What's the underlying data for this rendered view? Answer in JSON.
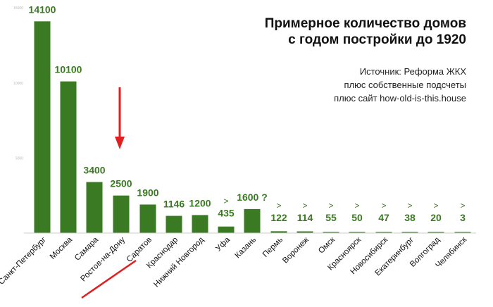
{
  "chart_data": {
    "type": "bar",
    "title_lines": [
      "Примерное количество домов",
      "с годом постройки до 1920"
    ],
    "source_lines": [
      "Источник: Реформа ЖКХ",
      "плюс собственные подсчеты",
      "плюс сайт how-old-is-this.house"
    ],
    "categories": [
      "Санкт-Петербург",
      "Москва",
      "Самара",
      "Ростов-на-Дону",
      "Саратов",
      "Краснодар",
      "Нижний Новгород",
      "Уфа",
      "Казань",
      "Пермь",
      "Воронеж",
      "Омск",
      "Красноярск",
      "Новосибирск",
      "Екатеринбург",
      "Волгоград",
      "Челябинск"
    ],
    "values": [
      14100,
      10100,
      3400,
      2500,
      1900,
      1146,
      1200,
      435,
      1600,
      122,
      114,
      55,
      50,
      47,
      38,
      20,
      3
    ],
    "data_labels": [
      "14100",
      "10100",
      "3400",
      "2500",
      "1900",
      "1146",
      "1200",
      "435",
      "1600 ?",
      "122",
      "114",
      "55",
      "50",
      "47",
      "38",
      "20",
      "3"
    ],
    "label_prefix": [
      "",
      "",
      "",
      "",
      "",
      "",
      "",
      ">",
      "",
      ">",
      ">",
      ">",
      ">",
      ">",
      ">",
      ">",
      ">"
    ],
    "yticks": [
      "5000",
      "10000",
      "15000"
    ],
    "ylim": [
      0,
      16000
    ],
    "highlight_category": "Ростов-на-Дону",
    "colors": {
      "bar": "#3a7a22",
      "label": "#3a7a22",
      "highlight": "#e02020",
      "axis": "#cccccc",
      "tick": "#bbbbbb"
    },
    "grid": false
  }
}
